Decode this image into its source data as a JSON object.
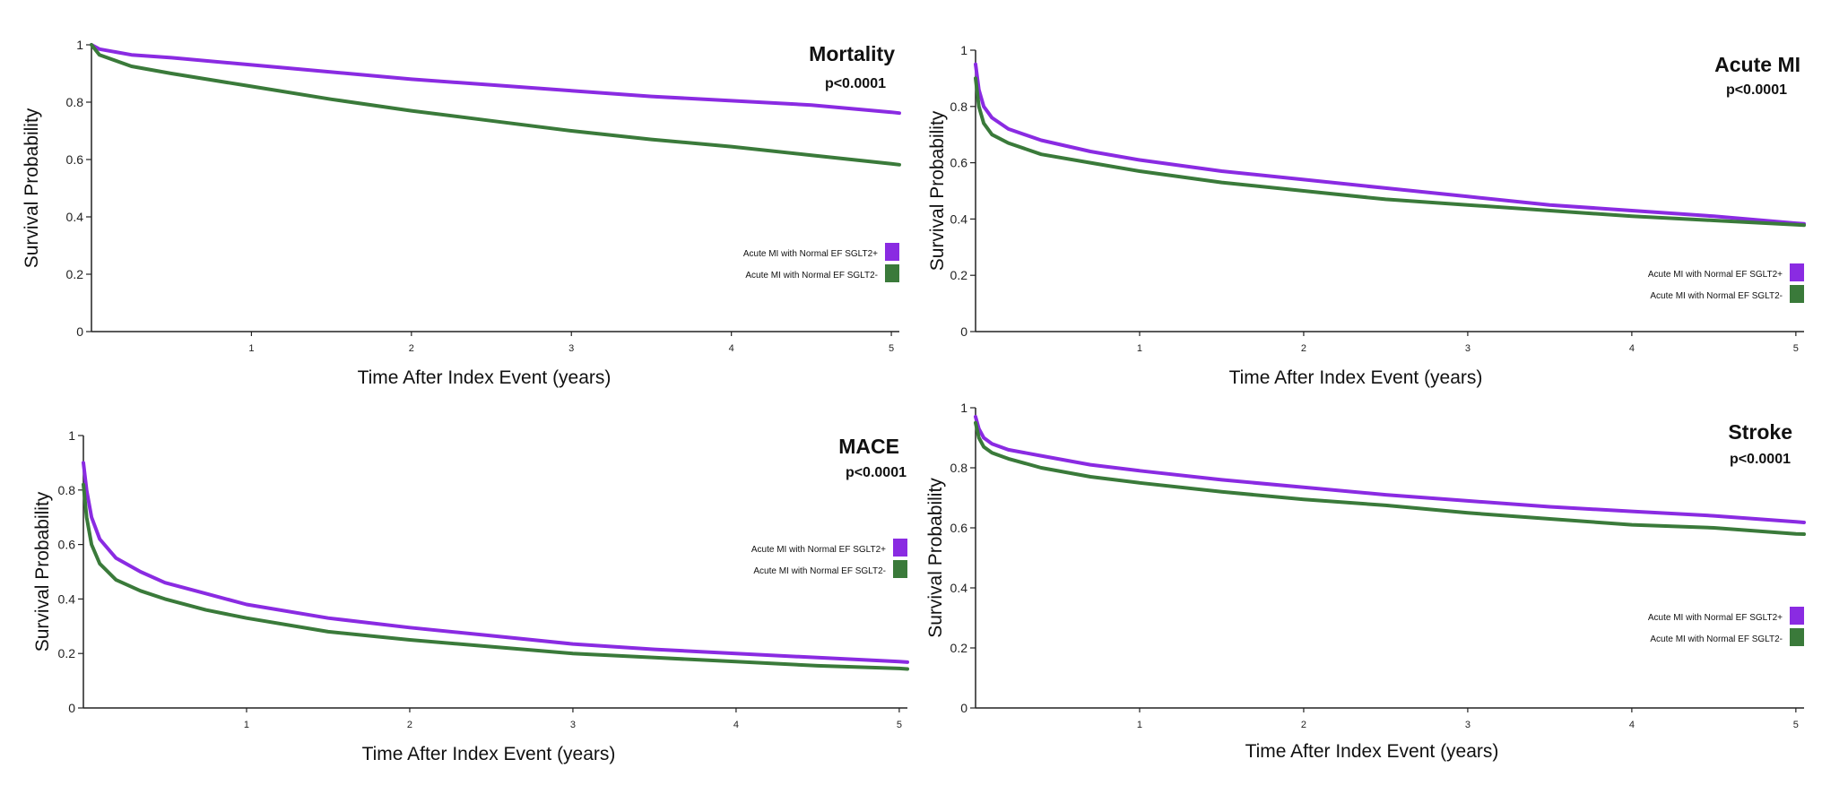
{
  "colors": {
    "sglt2_pos": "#8a2be2",
    "sglt2_neg": "#3a7a3a",
    "axis": "#222222"
  },
  "chart_data": [
    {
      "type": "line",
      "title": "Mortality",
      "subtitle": "p<0.0001",
      "xlabel": "Time After Index Event (years)",
      "ylabel": "Survival Probability",
      "xlim": [
        0,
        5.05
      ],
      "ylim": [
        0,
        1
      ],
      "x_ticks": [
        "1",
        "2",
        "3",
        "4",
        "5"
      ],
      "y_ticks": [
        "0",
        "0.2",
        "0.4",
        "0.6",
        "0.8",
        "1"
      ],
      "grid": false,
      "legend_position": "right",
      "series": [
        {
          "name": "Acute MI with Normal EF SGLT2+",
          "color": "#8a2be2",
          "x": [
            0,
            0.05,
            0.25,
            0.5,
            1,
            1.5,
            2,
            2.5,
            3,
            3.5,
            4,
            4.5,
            5,
            5.05
          ],
          "y": [
            1.0,
            0.985,
            0.965,
            0.955,
            0.93,
            0.905,
            0.88,
            0.86,
            0.84,
            0.82,
            0.805,
            0.79,
            0.765,
            0.762
          ]
        },
        {
          "name": "Acute MI with Normal EF SGLT2-",
          "color": "#3a7a3a",
          "x": [
            0,
            0.05,
            0.25,
            0.5,
            1,
            1.5,
            2,
            2.5,
            3,
            3.5,
            4,
            4.5,
            5,
            5.05
          ],
          "y": [
            1.0,
            0.965,
            0.925,
            0.9,
            0.855,
            0.81,
            0.77,
            0.735,
            0.7,
            0.67,
            0.645,
            0.615,
            0.585,
            0.582
          ]
        }
      ]
    },
    {
      "type": "line",
      "title": "Acute MI",
      "subtitle": "p<0.0001",
      "xlabel": "Time After Index Event (years)",
      "ylabel": "Survival Probability",
      "xlim": [
        0,
        5.05
      ],
      "ylim": [
        0,
        1
      ],
      "x_ticks": [
        "1",
        "2",
        "3",
        "4",
        "5"
      ],
      "y_ticks": [
        "0",
        "0.2",
        "0.4",
        "0.6",
        "0.8",
        "1"
      ],
      "grid": false,
      "legend_position": "right",
      "series": [
        {
          "name": "Acute MI with Normal EF SGLT2+",
          "color": "#8a2be2",
          "x": [
            0,
            0.02,
            0.05,
            0.1,
            0.2,
            0.4,
            0.7,
            1,
            1.5,
            2,
            2.5,
            3,
            3.5,
            4,
            4.5,
            5,
            5.05
          ],
          "y": [
            0.95,
            0.86,
            0.8,
            0.76,
            0.72,
            0.68,
            0.64,
            0.61,
            0.57,
            0.54,
            0.51,
            0.48,
            0.45,
            0.43,
            0.41,
            0.385,
            0.383
          ]
        },
        {
          "name": "Acute MI with Normal EF SGLT2-",
          "color": "#3a7a3a",
          "x": [
            0,
            0.02,
            0.05,
            0.1,
            0.2,
            0.4,
            0.7,
            1,
            1.5,
            2,
            2.5,
            3,
            3.5,
            4,
            4.5,
            5,
            5.05
          ],
          "y": [
            0.9,
            0.8,
            0.74,
            0.7,
            0.67,
            0.63,
            0.6,
            0.57,
            0.53,
            0.5,
            0.47,
            0.45,
            0.43,
            0.41,
            0.395,
            0.38,
            0.378
          ]
        }
      ]
    },
    {
      "type": "line",
      "title": "MACE",
      "subtitle": "p<0.0001",
      "xlabel": "Time After Index Event (years)",
      "ylabel": "Survival Probability",
      "xlim": [
        0,
        5.05
      ],
      "ylim": [
        0,
        1
      ],
      "x_ticks": [
        "1",
        "2",
        "3",
        "4",
        "5"
      ],
      "y_ticks": [
        "0",
        "0.2",
        "0.4",
        "0.6",
        "0.8",
        "1"
      ],
      "grid": false,
      "legend_position": "right",
      "series": [
        {
          "name": "Acute MI with Normal EF SGLT2+",
          "color": "#8a2be2",
          "x": [
            0,
            0.02,
            0.05,
            0.1,
            0.2,
            0.35,
            0.5,
            0.75,
            1,
            1.5,
            2,
            2.5,
            3,
            3.5,
            4,
            4.5,
            5,
            5.05
          ],
          "y": [
            0.9,
            0.8,
            0.7,
            0.62,
            0.55,
            0.5,
            0.46,
            0.42,
            0.38,
            0.33,
            0.295,
            0.265,
            0.235,
            0.215,
            0.2,
            0.185,
            0.17,
            0.168
          ]
        },
        {
          "name": "Acute MI with Normal EF SGLT2-",
          "color": "#3a7a3a",
          "x": [
            0,
            0.02,
            0.05,
            0.1,
            0.2,
            0.35,
            0.5,
            0.75,
            1,
            1.5,
            2,
            2.5,
            3,
            3.5,
            4,
            4.5,
            5,
            5.05
          ],
          "y": [
            0.82,
            0.7,
            0.6,
            0.53,
            0.47,
            0.43,
            0.4,
            0.36,
            0.33,
            0.28,
            0.25,
            0.225,
            0.2,
            0.185,
            0.17,
            0.155,
            0.145,
            0.143
          ]
        }
      ]
    },
    {
      "type": "line",
      "title": "Stroke",
      "subtitle": "p<0.0001",
      "xlabel": "Time After Index Event (years)",
      "ylabel": "Survival Probability",
      "xlim": [
        0,
        5.05
      ],
      "ylim": [
        0,
        1
      ],
      "x_ticks": [
        "1",
        "2",
        "3",
        "4",
        "5"
      ],
      "y_ticks": [
        "0",
        "0.2",
        "0.4",
        "0.6",
        "0.8",
        "1"
      ],
      "grid": false,
      "legend_position": "right",
      "series": [
        {
          "name": "Acute MI with Normal EF SGLT2+",
          "color": "#8a2be2",
          "x": [
            0,
            0.02,
            0.05,
            0.1,
            0.2,
            0.4,
            0.7,
            1,
            1.5,
            2,
            2.5,
            3,
            3.5,
            4,
            4.5,
            5,
            5.05
          ],
          "y": [
            0.97,
            0.93,
            0.9,
            0.88,
            0.86,
            0.84,
            0.81,
            0.79,
            0.76,
            0.735,
            0.71,
            0.69,
            0.67,
            0.655,
            0.64,
            0.62,
            0.618
          ]
        },
        {
          "name": "Acute MI with Normal EF SGLT2-",
          "color": "#3a7a3a",
          "x": [
            0,
            0.02,
            0.05,
            0.1,
            0.2,
            0.4,
            0.7,
            1,
            1.5,
            2,
            2.5,
            3,
            3.5,
            4,
            4.5,
            5,
            5.05
          ],
          "y": [
            0.95,
            0.9,
            0.87,
            0.85,
            0.83,
            0.8,
            0.77,
            0.75,
            0.72,
            0.695,
            0.675,
            0.65,
            0.63,
            0.61,
            0.6,
            0.58,
            0.579
          ]
        }
      ]
    }
  ]
}
